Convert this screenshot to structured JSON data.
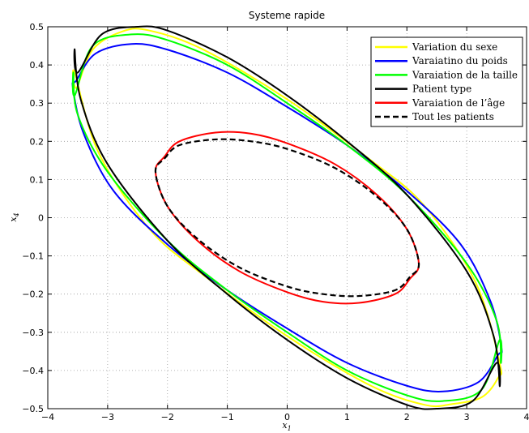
{
  "chart_data": {
    "type": "line",
    "title": "Systeme rapide",
    "xlabel": "x",
    "xlabel_sub": "1",
    "ylabel": "x",
    "ylabel_sub": "4",
    "xlim": [
      -4,
      4
    ],
    "ylim": [
      -0.5,
      0.5
    ],
    "xticks": [
      -4,
      -3,
      -2,
      -1,
      0,
      1,
      2,
      3,
      4
    ],
    "yticks": [
      -0.5,
      -0.4,
      -0.3,
      -0.2,
      -0.1,
      0,
      0.1,
      0.2,
      0.3,
      0.4,
      0.5
    ],
    "xtick_labels": [
      "−4",
      "−3",
      "−2",
      "−1",
      "0",
      "1",
      "2",
      "3",
      "4"
    ],
    "ytick_labels": [
      "−0.5",
      "−0.4",
      "−0.3",
      "−0.2",
      "−0.1",
      "0",
      "0.1",
      "0.2",
      "0.3",
      "0.4",
      "0.5"
    ],
    "grid": true,
    "legend_position": "top-right",
    "series": [
      {
        "name": "Variation du sexe",
        "color": "#ffff00",
        "dash": "solid",
        "x": [
          -3.52,
          -3.25,
          -2.75,
          -2.3,
          -1.4,
          0.0,
          1.4,
          2.3,
          3.15,
          3.55,
          3.52,
          3.25,
          2.75,
          2.3,
          1.4,
          0.0,
          -1.4,
          -2.3,
          -3.15,
          -3.55,
          -3.52
        ],
        "y": [
          0.34,
          0.44,
          0.488,
          0.49,
          0.44,
          0.31,
          0.15,
          0.03,
          -0.17,
          -0.38,
          -0.42,
          -0.47,
          -0.488,
          -0.49,
          -0.44,
          -0.31,
          -0.15,
          -0.03,
          0.17,
          0.38,
          0.34
        ]
      },
      {
        "name": "Varaiatino du poids",
        "color": "#0000ff",
        "dash": "solid",
        "x": [
          -3.52,
          -3.2,
          -2.6,
          -2.0,
          -1.0,
          0.0,
          1.0,
          2.0,
          2.9,
          3.4,
          3.58,
          3.52,
          3.2,
          2.6,
          2.0,
          1.0,
          0.0,
          -1.0,
          -2.0,
          -2.9,
          -3.4,
          -3.58,
          -3.52
        ],
        "y": [
          0.36,
          0.43,
          0.455,
          0.44,
          0.38,
          0.29,
          0.19,
          0.07,
          -0.07,
          -0.22,
          -0.34,
          -0.36,
          -0.43,
          -0.455,
          -0.44,
          -0.38,
          -0.29,
          -0.19,
          -0.07,
          0.07,
          0.22,
          0.34,
          0.36
        ]
      },
      {
        "name": "Varaiation de la taille",
        "color": "#00ff00",
        "dash": "solid",
        "x": [
          -3.55,
          -3.25,
          -2.6,
          -2.0,
          -1.0,
          0.0,
          1.0,
          2.0,
          3.0,
          3.5,
          3.57,
          3.55,
          3.25,
          2.6,
          2.0,
          1.0,
          0.0,
          -1.0,
          -2.0,
          -3.0,
          -3.5,
          -3.57,
          -3.55
        ],
        "y": [
          0.32,
          0.45,
          0.48,
          0.465,
          0.4,
          0.3,
          0.19,
          0.06,
          -0.12,
          -0.27,
          -0.38,
          -0.32,
          -0.45,
          -0.48,
          -0.465,
          -0.4,
          -0.3,
          -0.19,
          -0.06,
          0.12,
          0.27,
          0.38,
          0.32
        ]
      },
      {
        "name": "Patient type",
        "color": "#000000",
        "dash": "solid",
        "x": [
          -3.5,
          -3.1,
          -2.5,
          -2.0,
          -1.0,
          0.0,
          1.0,
          2.0,
          3.0,
          3.45,
          3.55,
          3.5,
          3.1,
          2.5,
          2.0,
          1.0,
          0.0,
          -1.0,
          -2.0,
          -3.0,
          -3.45,
          -3.55,
          -3.5
        ],
        "y": [
          0.38,
          0.48,
          0.5,
          0.49,
          0.42,
          0.32,
          0.2,
          0.06,
          -0.14,
          -0.31,
          -0.44,
          -0.38,
          -0.48,
          -0.5,
          -0.49,
          -0.42,
          -0.32,
          -0.2,
          -0.06,
          0.14,
          0.31,
          0.44,
          0.38
        ]
      },
      {
        "name": "Varaiation de l’âge",
        "color": "#ff0000",
        "dash": "solid",
        "x": [
          -2.05,
          -1.8,
          -1.2,
          -0.6,
          0.0,
          0.8,
          1.5,
          2.0,
          2.2,
          2.05,
          1.8,
          1.2,
          0.6,
          0.0,
          -0.8,
          -1.5,
          -2.0,
          -2.2,
          -2.05
        ],
        "y": [
          0.16,
          0.2,
          0.223,
          0.22,
          0.195,
          0.14,
          0.06,
          -0.03,
          -0.12,
          -0.16,
          -0.2,
          -0.223,
          -0.22,
          -0.195,
          -0.14,
          -0.06,
          0.03,
          0.12,
          0.16
        ]
      },
      {
        "name": "Tout les patients",
        "color": "#000000",
        "dash": "dashed",
        "x": [
          -2.05,
          -1.8,
          -1.2,
          -0.6,
          0.0,
          0.8,
          1.5,
          2.0,
          2.2,
          2.05,
          1.8,
          1.2,
          0.6,
          0.0,
          -0.8,
          -1.5,
          -2.0,
          -2.2,
          -2.05
        ],
        "y": [
          0.155,
          0.19,
          0.205,
          0.2,
          0.18,
          0.13,
          0.055,
          -0.03,
          -0.12,
          -0.155,
          -0.19,
          -0.205,
          -0.2,
          -0.18,
          -0.13,
          -0.055,
          0.03,
          0.12,
          0.155
        ]
      }
    ]
  }
}
